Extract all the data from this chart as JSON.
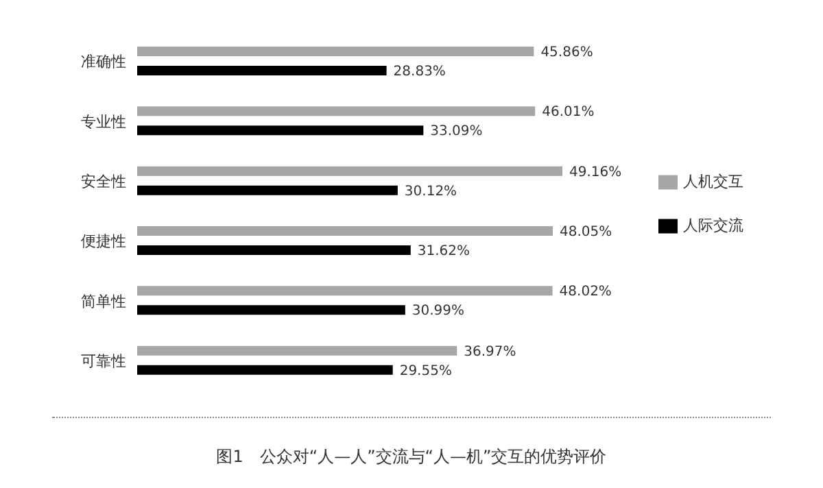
{
  "chart_data": {
    "type": "bar",
    "orientation": "horizontal",
    "categories": [
      "准确性",
      "专业性",
      "安全性",
      "便捷性",
      "简单性",
      "可靠性"
    ],
    "tick_labels": "y",
    "legend": "right",
    "grid": false,
    "series": [
      {
        "name": "人机交互",
        "color": "#a6a6a6",
        "values": [
          45.86,
          46.01,
          49.16,
          48.05,
          48.02,
          36.97
        ],
        "value_labels": [
          "45.86%",
          "46.01%",
          "49.16%",
          "48.05%",
          "48.02%",
          "36.97%"
        ]
      },
      {
        "name": "人际交流",
        "color": "#000000",
        "values": [
          28.83,
          33.09,
          30.12,
          31.62,
          30.99,
          29.55
        ],
        "value_labels": [
          "28.83%",
          "33.09%",
          "30.12%",
          "31.62%",
          "30.99%",
          "29.55%"
        ]
      }
    ],
    "annotations": [
      "图1　公众对“人—人”交流与“人—机”交互的优势评价"
    ]
  }
}
